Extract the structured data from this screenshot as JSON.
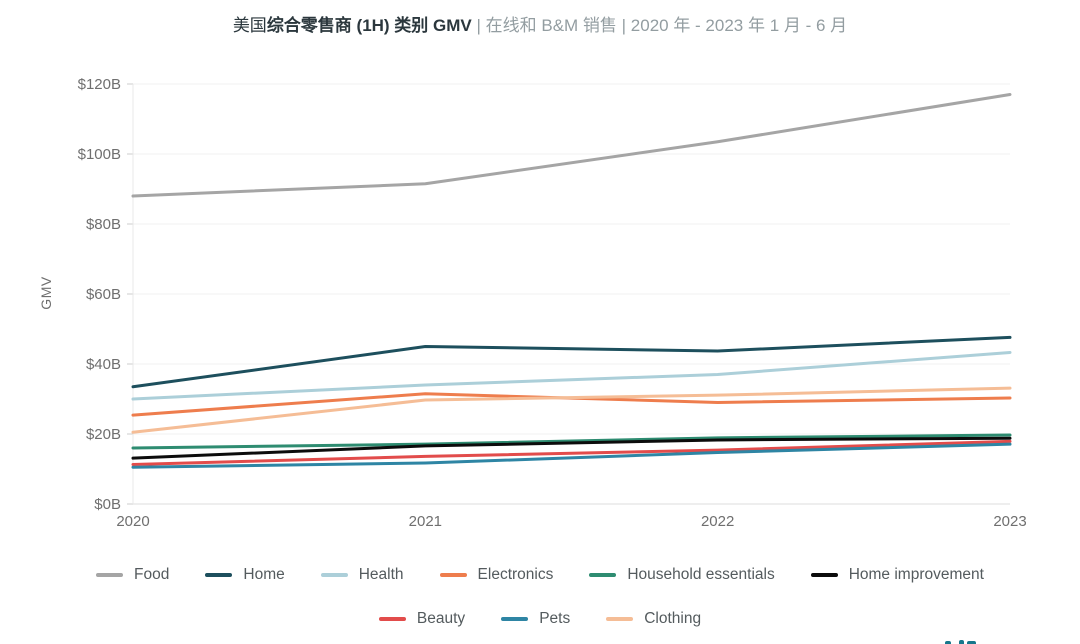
{
  "title": {
    "prefix": "美国",
    "bold": "综合零售商 (1H) 类别 GMV",
    "separator": " | ",
    "suffix": "在线和 B&M 销售 | 2020 年 - 2023 年 1 月 - 6 月"
  },
  "colors": {
    "title_dark": "#2b373d",
    "title_muted": "#939da1",
    "tick_label": "#6f6f6f",
    "grid_line": "#f1f1f1",
    "axis_line": "#dddddd",
    "legend_text": "#545b5e",
    "brand_mark": "#16778c"
  },
  "chart_data": {
    "type": "line",
    "title": "美国综合零售商 (1H) 类别 GMV | 在线和 B&M 销售 | 2020 年 - 2023 年 1 月 - 6 月",
    "xlabel": "",
    "ylabel": "GMV",
    "x": [
      2020,
      2021,
      2022,
      2023
    ],
    "x_tick_labels": [
      "2020",
      "2021",
      "2022",
      "2023"
    ],
    "ylim": [
      0,
      120
    ],
    "y_ticks": [
      0,
      20,
      40,
      60,
      80,
      100,
      120
    ],
    "y_tick_labels": [
      "$0B",
      "$20B",
      "$40B",
      "$60B",
      "$80B",
      "$100B",
      "$120B"
    ],
    "grid": true,
    "legend_position": "bottom",
    "units": "USD billions",
    "series": [
      {
        "name": "Food",
        "color": "#a5a5a5",
        "values": [
          88.0,
          91.5,
          103.5,
          117.0
        ]
      },
      {
        "name": "Home",
        "color": "#1d4f5d",
        "values": [
          33.5,
          45.0,
          43.7,
          47.6
        ]
      },
      {
        "name": "Health",
        "color": "#accfd9",
        "values": [
          30.0,
          34.0,
          37.0,
          43.3
        ]
      },
      {
        "name": "Electronics",
        "color": "#ee7d4d",
        "values": [
          25.4,
          31.5,
          29.0,
          30.3
        ]
      },
      {
        "name": "Household essentials",
        "color": "#2e8c71",
        "values": [
          16.0,
          17.1,
          18.9,
          19.7
        ]
      },
      {
        "name": "Home improvement",
        "color": "#0c0c0c",
        "values": [
          13.1,
          16.6,
          18.3,
          18.8
        ]
      },
      {
        "name": "Beauty",
        "color": "#e24c4b",
        "values": [
          11.3,
          13.6,
          15.4,
          17.9
        ]
      },
      {
        "name": "Pets",
        "color": "#2e85a4",
        "values": [
          10.5,
          11.7,
          14.7,
          17.1
        ]
      },
      {
        "name": "Clothing",
        "color": "#f5bd96",
        "values": [
          20.5,
          29.7,
          31.1,
          33.1
        ]
      }
    ],
    "legend_rows": [
      [
        0,
        1,
        2,
        3,
        4,
        5
      ],
      [
        6,
        7,
        8
      ]
    ]
  }
}
